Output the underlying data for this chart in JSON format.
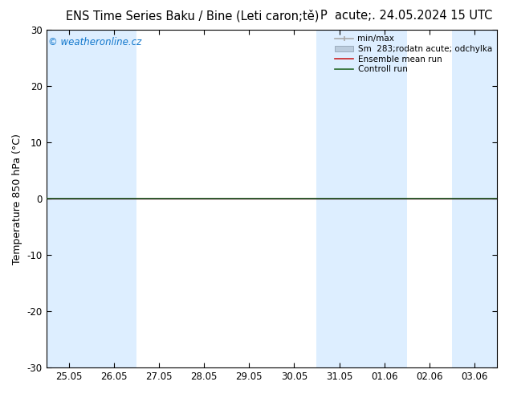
{
  "title_left": "ENS Time Series Baku / Bine (Leti caron;tě)",
  "title_right": "P  acute;. 24.05.2024 15 UTC",
  "ylabel": "Temperature 850 hPa (°C)",
  "ylim": [
    -30,
    30
  ],
  "yticks": [
    -30,
    -20,
    -10,
    0,
    10,
    20,
    30
  ],
  "xtick_labels": [
    "25.05",
    "26.05",
    "27.05",
    "28.05",
    "29.05",
    "30.05",
    "31.05",
    "01.06",
    "02.06",
    "03.06"
  ],
  "bg_color": "#ffffff",
  "plot_bg_color": "#ffffff",
  "shaded_color_light": "#ddeeff",
  "shaded_columns_dark": [
    1,
    7
  ],
  "shaded_color_dark": "#c8dcf0",
  "watermark": "© weatheronline.cz",
  "watermark_color": "#1177cc",
  "ensemble_mean_color": "#cc2222",
  "control_run_color": "#226622",
  "minmax_color": "#aaaaaa",
  "stddev_color": "#bbccdd",
  "title_fontsize": 10.5,
  "axis_label_fontsize": 9,
  "tick_fontsize": 8.5
}
